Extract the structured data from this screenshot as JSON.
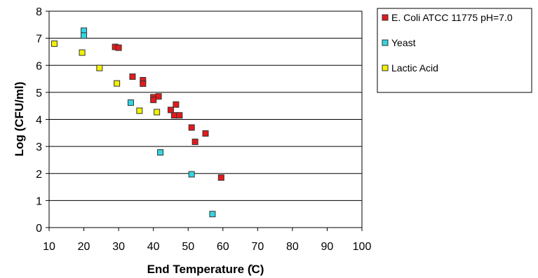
{
  "chart_data": {
    "type": "scatter",
    "xlabel": "End Temperature (̊C)",
    "ylabel": "Log (CFU/ml)",
    "xlim": [
      10,
      100
    ],
    "ylim": [
      0,
      8
    ],
    "x_ticks": [
      10,
      20,
      30,
      40,
      50,
      60,
      70,
      80,
      90,
      100
    ],
    "y_ticks": [
      0,
      1,
      2,
      3,
      4,
      5,
      6,
      7,
      8
    ],
    "grid": "horizontal",
    "legend_position": "right",
    "series": [
      {
        "name": "E. Coli  ATCC 11775 pH=7.0",
        "color": "#e31a1c",
        "points": [
          {
            "x": 29,
            "y": 6.68
          },
          {
            "x": 30,
            "y": 6.65
          },
          {
            "x": 34,
            "y": 5.58
          },
          {
            "x": 37,
            "y": 5.45
          },
          {
            "x": 37,
            "y": 5.32
          },
          {
            "x": 40,
            "y": 4.82
          },
          {
            "x": 41.5,
            "y": 4.85
          },
          {
            "x": 40,
            "y": 4.72
          },
          {
            "x": 45,
            "y": 4.35
          },
          {
            "x": 46.5,
            "y": 4.55
          },
          {
            "x": 46,
            "y": 4.15
          },
          {
            "x": 47.5,
            "y": 4.15
          },
          {
            "x": 51,
            "y": 3.7
          },
          {
            "x": 55,
            "y": 3.48
          },
          {
            "x": 52,
            "y": 3.17
          },
          {
            "x": 59.5,
            "y": 1.85
          }
        ]
      },
      {
        "name": "Yeast",
        "color": "#33d6e0",
        "points": [
          {
            "x": 20,
            "y": 7.28
          },
          {
            "x": 20,
            "y": 7.1
          },
          {
            "x": 33.5,
            "y": 4.62
          },
          {
            "x": 42,
            "y": 2.78
          },
          {
            "x": 51,
            "y": 1.97
          },
          {
            "x": 57,
            "y": 0.5
          }
        ]
      },
      {
        "name": "Lactic Acid",
        "color": "#f2f200",
        "points": [
          {
            "x": 11.5,
            "y": 6.8
          },
          {
            "x": 19.5,
            "y": 6.47
          },
          {
            "x": 24.5,
            "y": 5.9
          },
          {
            "x": 29.5,
            "y": 5.33
          },
          {
            "x": 36,
            "y": 4.32
          },
          {
            "x": 41,
            "y": 4.27
          }
        ]
      }
    ]
  }
}
